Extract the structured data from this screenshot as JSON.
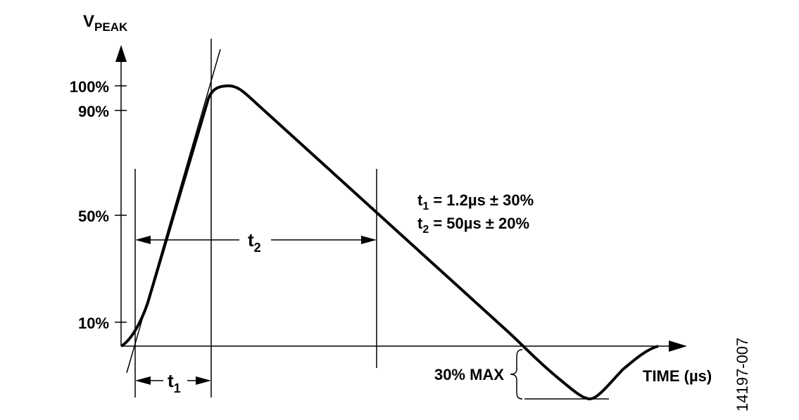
{
  "axes": {
    "y_label": {
      "text": "V",
      "subscript": "PEAK"
    },
    "x_label": "TIME (µs)",
    "y_levels": [
      "100%",
      "90%",
      "50%",
      "10%"
    ]
  },
  "intervals": [
    {
      "text": "t",
      "subscript": "1"
    },
    {
      "text": "t",
      "subscript": "2"
    }
  ],
  "specs": [
    {
      "symbol": "t",
      "subscript": "1",
      "value": " = 1.2µs ± 30%"
    },
    {
      "symbol": "t",
      "subscript": "2",
      "value": " = 50µs ± 20%"
    }
  ],
  "undershoot_label": "30% MAX",
  "figure_id": "14197-007"
}
